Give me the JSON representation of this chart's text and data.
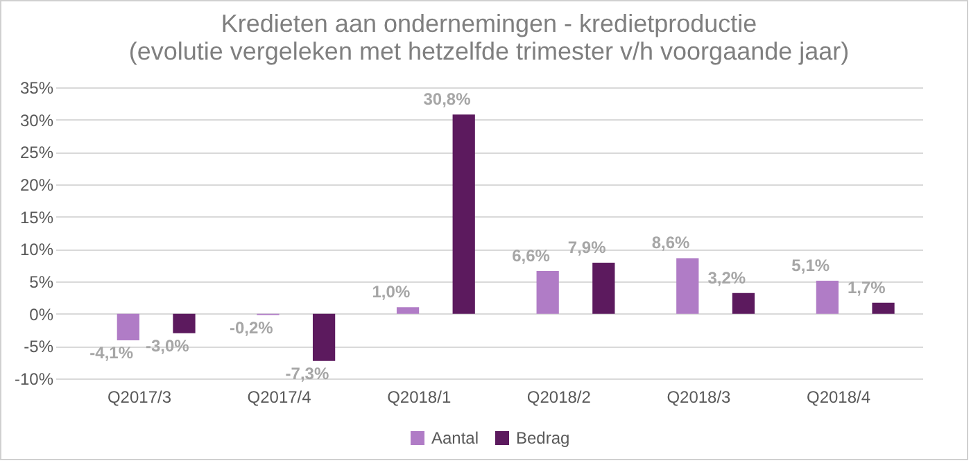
{
  "chart_data": {
    "type": "bar",
    "title": "Kredieten aan ondernemingen - kredietproductie",
    "subtitle": "(evolutie vergeleken met hetzelfde trimester v/h voorgaande jaar)",
    "categories": [
      "Q2017/3",
      "Q2017/4",
      "Q2018/1",
      "Q2018/2",
      "Q2018/3",
      "Q2018/4"
    ],
    "series": [
      {
        "name": "Aantal",
        "color": "#b07cc6",
        "values": [
          -4.1,
          -0.2,
          1.0,
          6.6,
          8.6,
          5.1
        ],
        "value_labels": [
          "-4,1%",
          "-0,2%",
          "1,0%",
          "6,6%",
          "8,6%",
          "5,1%"
        ]
      },
      {
        "name": "Bedrag",
        "color": "#5c1a5e",
        "values": [
          -3.0,
          -7.3,
          30.8,
          7.9,
          3.2,
          1.7
        ],
        "value_labels": [
          "-3,0%",
          "-7,3%",
          "30,8%",
          "7,9%",
          "3,2%",
          "1,7%"
        ]
      }
    ],
    "ylim": [
      -10,
      35
    ],
    "yticks": [
      {
        "value": -10,
        "label": "-10%"
      },
      {
        "value": -5,
        "label": "-5%"
      },
      {
        "value": 0,
        "label": "0%"
      },
      {
        "value": 5,
        "label": "5%"
      },
      {
        "value": 10,
        "label": "10%"
      },
      {
        "value": 15,
        "label": "15%"
      },
      {
        "value": 20,
        "label": "20%"
      },
      {
        "value": 25,
        "label": "25%"
      },
      {
        "value": 30,
        "label": "30%"
      },
      {
        "value": 35,
        "label": "35%"
      }
    ],
    "grid": "y",
    "legend": "bottom"
  }
}
